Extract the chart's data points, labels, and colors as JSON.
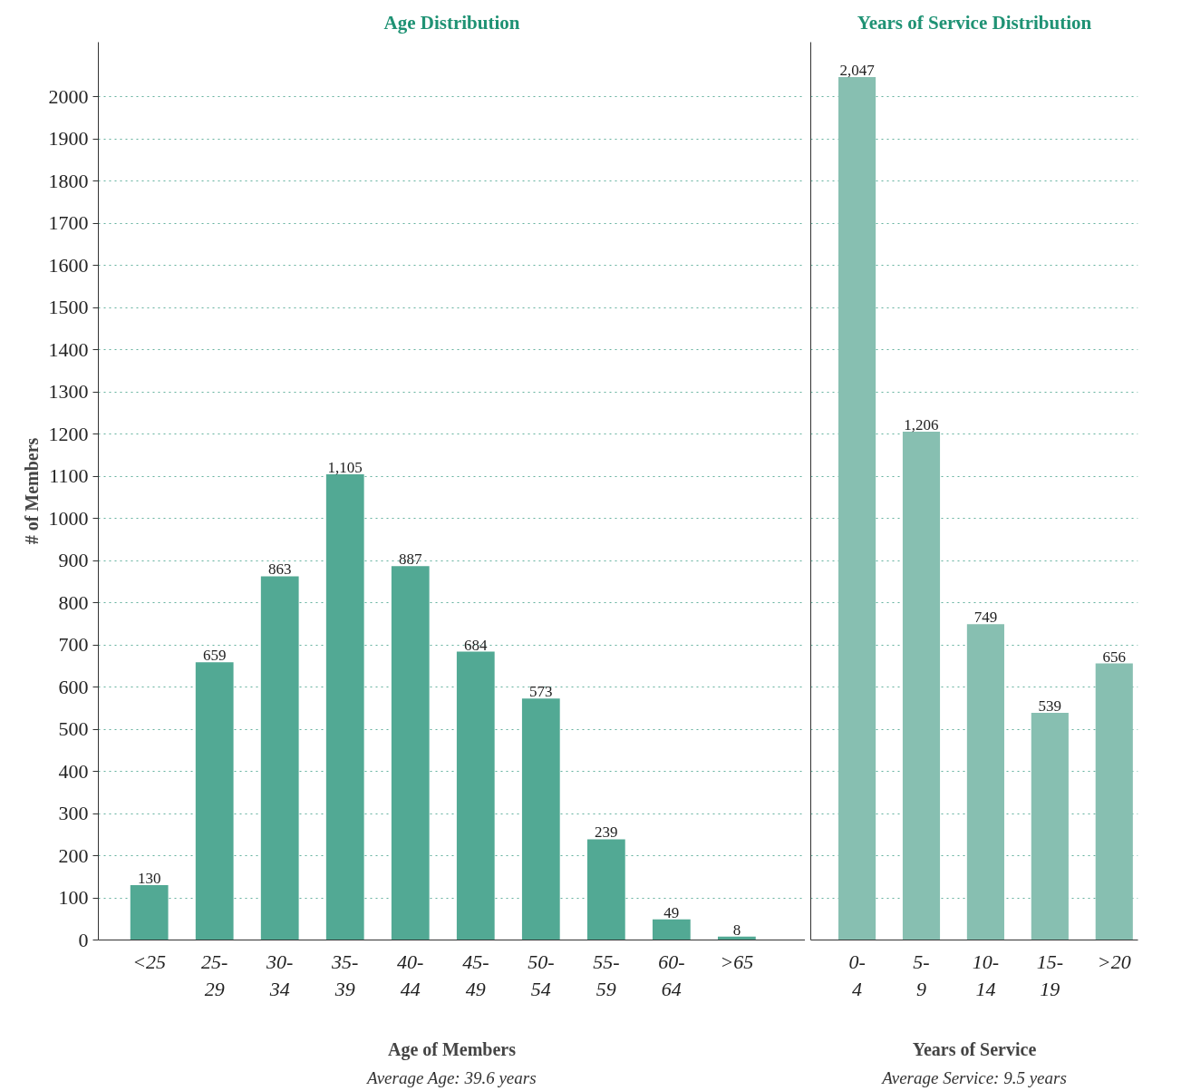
{
  "chart_data": [
    {
      "type": "bar",
      "title": "Age Distribution",
      "xlabel": "Age of Members",
      "ylabel": "# of Members",
      "categories": [
        "<25",
        "25-29",
        "30-34",
        "35-39",
        "40-44",
        "45-49",
        "50-54",
        "55-59",
        "60-64",
        ">65"
      ],
      "values": [
        130,
        659,
        863,
        1105,
        887,
        684,
        573,
        239,
        49,
        8
      ],
      "value_labels": [
        "130",
        "659",
        "863",
        "1,105",
        "887",
        "684",
        "573",
        "239",
        "49",
        "8"
      ],
      "color": "#52a994",
      "ylim": [
        0,
        2130
      ],
      "yticks": [
        0,
        100,
        200,
        300,
        400,
        500,
        600,
        700,
        800,
        900,
        1000,
        1100,
        1200,
        1300,
        1400,
        1500,
        1600,
        1700,
        1800,
        1900,
        2000
      ],
      "grid": "y",
      "annotations": [
        "Average Age: 39.6 years"
      ]
    },
    {
      "type": "bar",
      "title": "Years of Service Distribution",
      "xlabel": "Years of Service",
      "categories": [
        "0-4",
        "5-9",
        "10-14",
        "15-19",
        ">20"
      ],
      "values": [
        2047,
        1206,
        749,
        539,
        656
      ],
      "value_labels": [
        "2,047",
        "1,206",
        "749",
        "539",
        "656"
      ],
      "color": "#87bfb1",
      "ylim": [
        0,
        2130
      ],
      "yticks": [
        0,
        100,
        200,
        300,
        400,
        500,
        600,
        700,
        800,
        900,
        1000,
        1100,
        1200,
        1300,
        1400,
        1500,
        1600,
        1700,
        1800,
        1900,
        2000
      ],
      "grid": "y",
      "tick_labels": "x",
      "annotations": [
        "Average Service: 9.5 years"
      ]
    }
  ]
}
